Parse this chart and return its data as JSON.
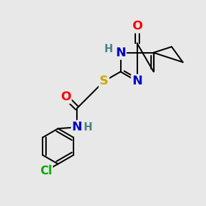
{
  "bg_color": "#e8e8e8",
  "atom_colors": {
    "O": "#ff0000",
    "N": "#0000cc",
    "S": "#ccaa00",
    "Cl": "#00aa00",
    "C": "#000000",
    "H": "#4a8080"
  },
  "bond_color": "#000000",
  "bond_lw": 1.5
}
